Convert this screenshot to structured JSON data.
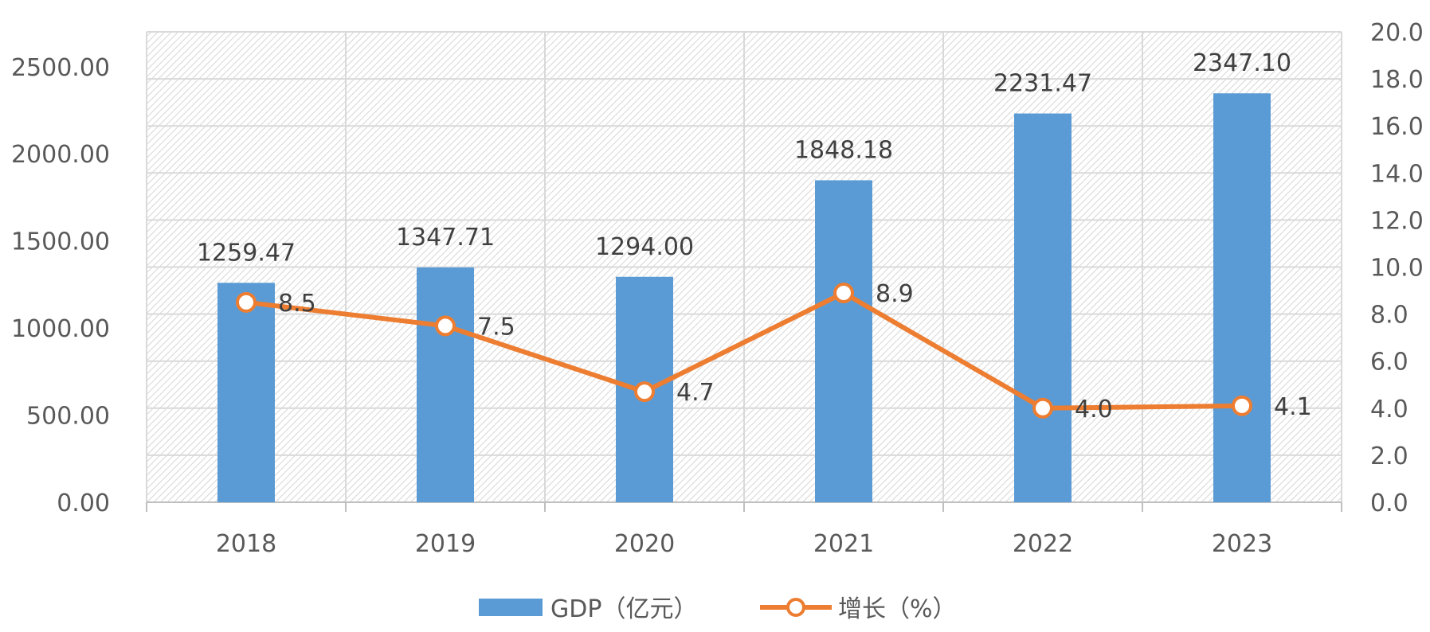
{
  "chart_data": {
    "type": "bar",
    "categories": [
      "2018",
      "2019",
      "2020",
      "2021",
      "2022",
      "2023"
    ],
    "series": [
      {
        "name": "GDP（亿元）",
        "type": "bar",
        "axis": "left",
        "color": "#5b9bd5",
        "values": [
          1259.47,
          1347.71,
          1294.0,
          1848.18,
          2231.47,
          2347.1
        ],
        "labels": [
          "1259.47",
          "1347.71",
          "1294.00",
          "1848.18",
          "2231.47",
          "2347.10"
        ]
      },
      {
        "name": "增长（%）",
        "type": "line",
        "axis": "right",
        "color": "#ed7d31",
        "values": [
          8.5,
          7.5,
          4.7,
          8.9,
          4.0,
          4.1
        ],
        "labels": [
          "8.5",
          "7.5",
          "4.7",
          "8.9",
          "4.0",
          "4.1"
        ]
      }
    ],
    "y_left": {
      "ylim": [
        0,
        2700
      ],
      "ticks": [
        0,
        500,
        1000,
        1500,
        2000,
        2500
      ],
      "tick_labels": [
        "0.00",
        "500.00",
        "1000.00",
        "1500.00",
        "2000.00",
        "2500.00"
      ]
    },
    "y_right": {
      "ylim": [
        0,
        20
      ],
      "ticks": [
        0,
        2,
        4,
        6,
        8,
        10,
        12,
        14,
        16,
        18,
        20
      ],
      "tick_labels": [
        "0.0",
        "2.0",
        "4.0",
        "6.0",
        "8.0",
        "10.0",
        "12.0",
        "14.0",
        "16.0",
        "18.0",
        "20.0"
      ]
    },
    "grid": true,
    "legend_position": "bottom-center",
    "title": "",
    "xlabel": "",
    "ylabel": ""
  }
}
